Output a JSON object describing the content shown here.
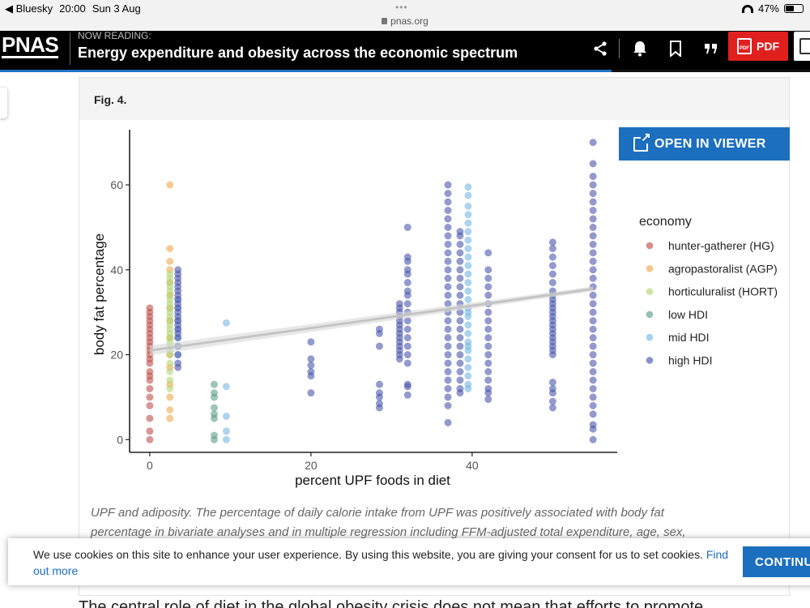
{
  "status_bar": {
    "back_app": "◀ Bluesky",
    "time": "20:00",
    "date": "Sun 3 Aug",
    "url": "pnas.org",
    "battery": "47%",
    "battery_level": 0.47
  },
  "header": {
    "logo": "PNAS",
    "now_reading": "NOW READING:",
    "title": "Energy expenditure and obesity across the economic spectrum",
    "icons": [
      "share-icon",
      "bell-icon",
      "bookmark-icon",
      "quote-icon"
    ],
    "pdf_label": "PDF",
    "pdf_badge": "PDF"
  },
  "figure": {
    "label": "Fig. 4.",
    "open_viewer": "OPEN IN VIEWER",
    "caption_lines": [
      "UPF and adiposity. The percentage of daily calorie intake from UPF was positively associated with body fat",
      "percentage in bivariate analyses and in multiple regression including FFM-adjusted total expenditure, age, sex,"
    ]
  },
  "chart_data": {
    "type": "scatter",
    "xlabel": "percent UPF foods in diet",
    "ylabel": "body fat percentage",
    "xlim": [
      -2.5,
      58
    ],
    "ylim": [
      -3,
      73
    ],
    "xticks": [
      0,
      20,
      40
    ],
    "yticks": [
      0,
      20,
      40,
      60
    ],
    "legend_title": "economy",
    "legend_position": "right",
    "series": [
      {
        "name": "hunter-gatherer (HG)",
        "color": "#c0504d",
        "columns": [
          {
            "x": 0,
            "ys": [
              0,
              2,
              5,
              8,
              10,
              12,
              14,
              15,
              16,
              18,
              19,
              20,
              21,
              22,
              23,
              24,
              25,
              26,
              27,
              28,
              29,
              30,
              31
            ]
          }
        ]
      },
      {
        "name": "agropastoralist (AGP)",
        "color": "#f0a94e",
        "columns": [
          {
            "x": 2.5,
            "ys": [
              5,
              7,
              10,
              13,
              17,
              20,
              24,
              28,
              31,
              34,
              37,
              40,
              42,
              45,
              60
            ]
          }
        ]
      },
      {
        "name": "horticuluralist (HORT)",
        "color": "#b6d67a",
        "columns": [
          {
            "x": 2.5,
            "ys": [
              12,
              14,
              16,
              18,
              20,
              21,
              22,
              23,
              24,
              25,
              26,
              27,
              28,
              29,
              30,
              31,
              32,
              33,
              34,
              35,
              36,
              37,
              38,
              39
            ]
          }
        ]
      },
      {
        "name": "low HDI",
        "color": "#5e9e8a",
        "columns": [
          {
            "x": 8,
            "ys": [
              0,
              1,
              5,
              6,
              7.5,
              10,
              11,
              13
            ]
          }
        ]
      },
      {
        "name": "mid HDI",
        "color": "#76b8e5",
        "columns": [
          {
            "x": 3.5,
            "ys": [
              20,
              22,
              24,
              26,
              28,
              31,
              33
            ]
          },
          {
            "x": 9.5,
            "ys": [
              0,
              2,
              5.5,
              12.5,
              27.5
            ]
          },
          {
            "x": 39.5,
            "ys": [
              12,
              13,
              15,
              17,
              19,
              21,
              22,
              23,
              25,
              27,
              29,
              30,
              31,
              33,
              35,
              37,
              39,
              41,
              43,
              45,
              47,
              49,
              51,
              53,
              55,
              57.5,
              59.5
            ]
          }
        ]
      },
      {
        "name": "high HDI",
        "color": "#4a56ad",
        "columns": [
          {
            "x": 3.5,
            "ys": [
              17,
              18,
              20,
              22,
              24,
              25,
              26,
              27,
              28,
              29,
              30,
              31,
              32,
              33,
              34,
              35,
              36,
              37,
              38,
              39,
              40
            ]
          },
          {
            "x": 20,
            "ys": [
              11,
              15,
              16,
              17.5,
              19,
              23
            ]
          },
          {
            "x": 28.5,
            "ys": [
              7.5,
              8.5,
              10,
              11,
              13,
              22,
              25,
              26
            ]
          },
          {
            "x": 31,
            "ys": [
              19,
              20,
              21,
              22,
              23,
              24,
              25,
              26,
              27,
              28,
              29,
              30,
              31,
              32
            ]
          },
          {
            "x": 32,
            "ys": [
              10.5,
              12.5,
              13,
              18,
              20,
              22,
              24,
              26,
              28,
              30,
              32,
              34,
              35,
              37,
              39,
              40,
              42,
              43,
              50
            ]
          },
          {
            "x": 37,
            "ys": [
              4,
              8,
              10,
              12,
              14,
              16,
              18,
              20,
              22,
              24,
              26,
              28,
              30,
              32,
              34,
              36,
              38,
              40,
              42,
              44,
              46,
              48,
              50,
              52,
              54,
              56,
              58,
              60
            ]
          },
          {
            "x": 38.5,
            "ys": [
              11,
              12,
              14,
              16,
              18,
              20,
              22,
              24,
              26,
              28,
              30,
              32,
              34,
              36,
              38,
              40,
              42,
              44,
              46,
              48,
              49
            ]
          },
          {
            "x": 42,
            "ys": [
              9.5,
              11,
              12,
              14,
              16,
              18,
              20,
              22,
              24,
              26,
              28,
              30,
              32,
              34,
              36,
              38,
              40,
              44
            ]
          },
          {
            "x": 50,
            "ys": [
              7.5,
              9,
              11,
              12,
              13.5,
              20,
              21,
              22,
              23,
              24,
              25,
              26,
              27,
              28,
              29,
              30,
              31,
              32,
              33,
              34,
              35,
              37,
              39,
              41,
              43,
              45,
              46.5
            ]
          },
          {
            "x": 55,
            "ys": [
              0,
              2.5,
              3.5,
              6,
              8,
              10,
              12,
              14,
              16,
              18,
              20,
              22,
              24,
              26,
              28,
              30,
              32,
              34,
              36,
              38,
              40,
              42,
              44,
              46,
              48,
              50,
              52,
              54,
              56,
              58,
              60,
              62,
              65,
              70
            ]
          }
        ]
      }
    ],
    "trend_line": {
      "x": [
        0,
        55
      ],
      "y": [
        21,
        35.5
      ],
      "color": "#c4c4c4"
    }
  },
  "cookie": {
    "text": "We use cookies on this site to enhance your user experience. By using this website, you are giving your consent for us to set cookies.",
    "link": "Find out more",
    "button": "CONTINUE"
  },
  "body_text": "The central role of diet in the global obesity crisis does not mean that efforts to promote"
}
